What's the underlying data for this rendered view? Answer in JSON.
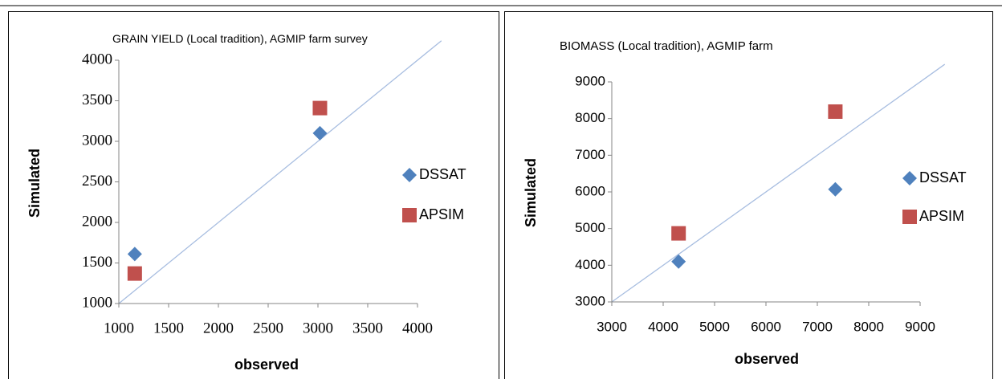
{
  "chart_data": [
    {
      "type": "scatter",
      "title": "GRAIN YIELD (Local tradition), AGMIP farm survey",
      "x_label": "observed",
      "y_label": "Simulated",
      "xlim": [
        1000,
        4000
      ],
      "xticks": [
        1000,
        1500,
        2000,
        2500,
        3000,
        3500,
        4000
      ],
      "ylim": [
        1000,
        4000
      ],
      "yticks": [
        1000,
        1500,
        2000,
        2500,
        3000,
        3500,
        4000
      ],
      "series": [
        {
          "name": "DSSAT",
          "color": "#4f81bd",
          "marker": "diamond",
          "x": [
            1160,
            3020
          ],
          "values": [
            1610,
            3100
          ]
        },
        {
          "name": "APSIM",
          "color": "#c0504d",
          "marker": "square",
          "x": [
            1160,
            3020
          ],
          "values": [
            1370,
            3410
          ]
        }
      ]
    },
    {
      "type": "scatter",
      "title": "BIOMASS (Local tradition),  AGMIP  farm",
      "x_label": "observed",
      "y_label": "Simulated",
      "xlim": [
        3000,
        9000
      ],
      "xticks": [
        3000,
        4000,
        5000,
        6000,
        7000,
        8000,
        9000
      ],
      "ylim": [
        3000,
        9000
      ],
      "yticks": [
        3000,
        4000,
        5000,
        6000,
        7000,
        8000,
        9000
      ],
      "series": [
        {
          "name": "DSSAT",
          "color": "#4f81bd",
          "marker": "diamond",
          "x": [
            4300,
            7350
          ],
          "values": [
            4100,
            6070
          ]
        },
        {
          "name": "APSIM",
          "color": "#c0504d",
          "marker": "square",
          "x": [
            4300,
            7350
          ],
          "values": [
            4870,
            8190
          ]
        }
      ]
    }
  ]
}
